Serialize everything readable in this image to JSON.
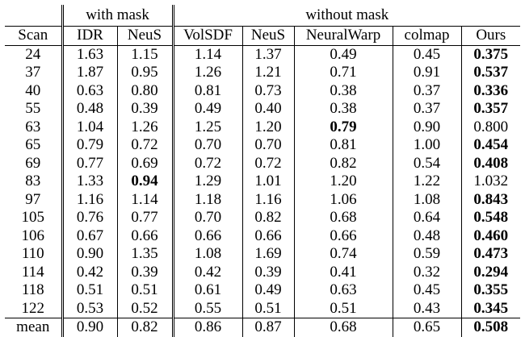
{
  "groups": {
    "with_mask": "with mask",
    "without_mask": "without mask"
  },
  "columns": [
    "Scan",
    "IDR",
    "NeuS",
    "VolSDF",
    "NeuS",
    "NeuralWarp",
    "colmap",
    "Ours"
  ],
  "rows": [
    {
      "cells": [
        "24",
        "1.63",
        "1.15",
        "1.14",
        "1.37",
        "0.49",
        "0.45",
        "0.375"
      ],
      "bold": [
        7
      ]
    },
    {
      "cells": [
        "37",
        "1.87",
        "0.95",
        "1.26",
        "1.21",
        "0.71",
        "0.91",
        "0.537"
      ],
      "bold": [
        7
      ]
    },
    {
      "cells": [
        "40",
        "0.63",
        "0.80",
        "0.81",
        "0.73",
        "0.38",
        "0.37",
        "0.336"
      ],
      "bold": [
        7
      ]
    },
    {
      "cells": [
        "55",
        "0.48",
        "0.39",
        "0.49",
        "0.40",
        "0.38",
        "0.37",
        "0.357"
      ],
      "bold": [
        7
      ]
    },
    {
      "cells": [
        "63",
        "1.04",
        "1.26",
        "1.25",
        "1.20",
        "0.79",
        "0.90",
        "0.800"
      ],
      "bold": [
        5
      ]
    },
    {
      "cells": [
        "65",
        "0.79",
        "0.72",
        "0.70",
        "0.70",
        "0.81",
        "1.00",
        "0.454"
      ],
      "bold": [
        7
      ]
    },
    {
      "cells": [
        "69",
        "0.77",
        "0.69",
        "0.72",
        "0.72",
        "0.82",
        "0.54",
        "0.408"
      ],
      "bold": [
        7
      ]
    },
    {
      "cells": [
        "83",
        "1.33",
        "0.94",
        "1.29",
        "1.01",
        "1.20",
        "1.22",
        "1.032"
      ],
      "bold": [
        2
      ]
    },
    {
      "cells": [
        "97",
        "1.16",
        "1.14",
        "1.18",
        "1.16",
        "1.06",
        "1.08",
        "0.843"
      ],
      "bold": [
        7
      ]
    },
    {
      "cells": [
        "105",
        "0.76",
        "0.77",
        "0.70",
        "0.82",
        "0.68",
        "0.64",
        "0.548"
      ],
      "bold": [
        7
      ]
    },
    {
      "cells": [
        "106",
        "0.67",
        "0.66",
        "0.66",
        "0.66",
        "0.66",
        "0.48",
        "0.460"
      ],
      "bold": [
        7
      ]
    },
    {
      "cells": [
        "110",
        "0.90",
        "1.35",
        "1.08",
        "1.69",
        "0.74",
        "0.59",
        "0.473"
      ],
      "bold": [
        7
      ]
    },
    {
      "cells": [
        "114",
        "0.42",
        "0.39",
        "0.42",
        "0.39",
        "0.41",
        "0.32",
        "0.294"
      ],
      "bold": [
        7
      ]
    },
    {
      "cells": [
        "118",
        "0.51",
        "0.51",
        "0.61",
        "0.49",
        "0.63",
        "0.45",
        "0.355"
      ],
      "bold": [
        7
      ]
    },
    {
      "cells": [
        "122",
        "0.53",
        "0.52",
        "0.55",
        "0.51",
        "0.51",
        "0.43",
        "0.345"
      ],
      "bold": [
        7
      ]
    }
  ],
  "mean": {
    "cells": [
      "mean",
      "0.90",
      "0.82",
      "0.86",
      "0.87",
      "0.68",
      "0.65",
      "0.508"
    ],
    "bold": [
      7
    ]
  }
}
